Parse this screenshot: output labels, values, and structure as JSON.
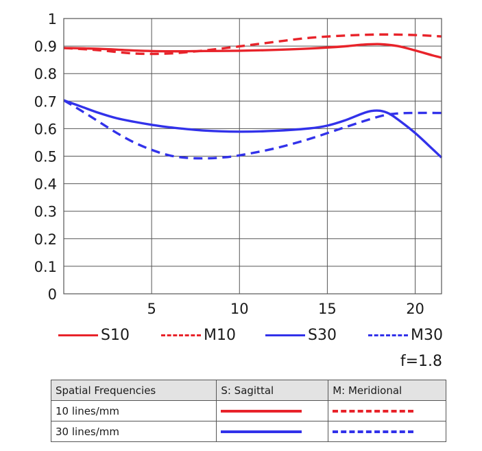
{
  "chart_data": {
    "type": "line",
    "title": "",
    "xlabel": "",
    "ylabel": "",
    "xlim": [
      0,
      21.5
    ],
    "ylim": [
      0,
      1
    ],
    "xticks": [
      5,
      10,
      15,
      20
    ],
    "xtick_labels": [
      "5",
      "10",
      "15",
      "20"
    ],
    "yticks": [
      0,
      0.1,
      0.2,
      0.3,
      0.4,
      0.5,
      0.6,
      0.7,
      0.8,
      0.9,
      1
    ],
    "ytick_labels": [
      "0",
      "0.1",
      "0.2",
      "0.3",
      "0.4",
      "0.5",
      "0.6",
      "0.7",
      "0.8",
      "0.9",
      "1"
    ],
    "grid": true,
    "legend_position": "bottom",
    "series": [
      {
        "name": "S10",
        "color": "#e8232a",
        "dash": "solid",
        "x": [
          0,
          2,
          4,
          6,
          8,
          10,
          12,
          14,
          16,
          17,
          18,
          19,
          20,
          21,
          21.5
        ],
        "y": [
          0.893,
          0.89,
          0.884,
          0.881,
          0.882,
          0.883,
          0.886,
          0.891,
          0.899,
          0.905,
          0.907,
          0.9,
          0.884,
          0.866,
          0.858
        ]
      },
      {
        "name": "M10",
        "color": "#e8232a",
        "dash": "dashed",
        "x": [
          0,
          2,
          4,
          6,
          8,
          10,
          12,
          14,
          16,
          18,
          20,
          21.5
        ],
        "y": [
          0.893,
          0.885,
          0.873,
          0.873,
          0.884,
          0.899,
          0.915,
          0.93,
          0.938,
          0.942,
          0.94,
          0.935
        ]
      },
      {
        "name": "S30",
        "color": "#3232ea",
        "dash": "solid",
        "x": [
          0,
          1,
          2,
          3,
          4,
          5,
          6,
          8,
          10,
          12,
          14,
          15,
          16,
          17,
          17.5,
          18,
          18.5,
          19,
          20,
          21,
          21.5
        ],
        "y": [
          0.703,
          0.68,
          0.657,
          0.638,
          0.625,
          0.614,
          0.605,
          0.593,
          0.589,
          0.592,
          0.601,
          0.611,
          0.63,
          0.655,
          0.664,
          0.665,
          0.655,
          0.634,
          0.584,
          0.525,
          0.495
        ]
      },
      {
        "name": "M30",
        "color": "#3232ea",
        "dash": "dashed",
        "x": [
          0,
          1,
          2,
          3,
          4,
          5,
          6,
          7,
          8,
          9,
          10,
          12,
          14,
          16,
          18,
          19,
          20,
          21.5
        ],
        "y": [
          0.703,
          0.665,
          0.625,
          0.585,
          0.55,
          0.523,
          0.503,
          0.494,
          0.492,
          0.495,
          0.503,
          0.528,
          0.563,
          0.605,
          0.645,
          0.655,
          0.657,
          0.657
        ]
      }
    ]
  },
  "legend": [
    {
      "label": "S10",
      "color": "#e8232a",
      "dash": "solid"
    },
    {
      "label": "M10",
      "color": "#e8232a",
      "dash": "dashed"
    },
    {
      "label": "S30",
      "color": "#3232ea",
      "dash": "solid"
    },
    {
      "label": "M30",
      "color": "#3232ea",
      "dash": "dashed"
    }
  ],
  "aperture": "f=1.8",
  "key_table": {
    "headers": [
      "Spatial Frequencies",
      "S: Sagittal",
      "M: Meridional"
    ],
    "rows": [
      {
        "label": "10 lines/mm",
        "color": "#e8232a"
      },
      {
        "label": "30 lines/mm",
        "color": "#3232ea"
      }
    ]
  }
}
